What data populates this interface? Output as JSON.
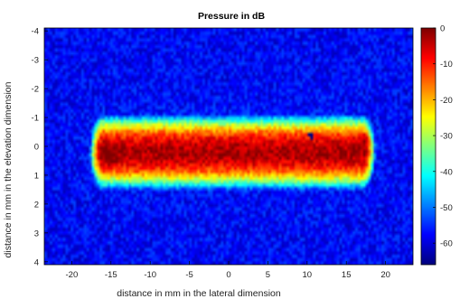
{
  "chart_data": {
    "type": "heatmap",
    "title": "Pressure in dB",
    "xlabel": "distance in mm in the lateral dimension",
    "ylabel": "distance in mm in the elevation dimension",
    "xlim": [
      -23.5,
      23.5
    ],
    "ylim": [
      -4.1,
      4.1
    ],
    "y_direction": "reversed (top = -4)",
    "x_ticks": [
      "-20",
      "-15",
      "-10",
      "-5",
      "0",
      "5",
      "10",
      "15",
      "20"
    ],
    "y_ticks": [
      "-4",
      "-3",
      "-2",
      "-1",
      "0",
      "1",
      "2",
      "3",
      "4"
    ],
    "colorbar": {
      "range": [
        -66,
        0
      ],
      "ticks": [
        "0",
        "-10",
        "-20",
        "-30",
        "-40",
        "-50",
        "-60"
      ],
      "colormap": "jet"
    },
    "regions": [
      {
        "name": "background",
        "value_db": -58
      },
      {
        "name": "beam",
        "x_range": [
          -17.5,
          18.5
        ],
        "y_range": [
          -1.1,
          1.5
        ],
        "peak_db": -3
      },
      {
        "name": "hotspot-left",
        "x": -15,
        "y": 0.3,
        "value_db": 0
      },
      {
        "name": "hotspot-right",
        "x": 17.5,
        "y": -0.2,
        "value_db": 0
      },
      {
        "name": "blue-speck",
        "x": 10.5,
        "y": -0.4,
        "value_db": -66
      }
    ],
    "grid": false
  }
}
